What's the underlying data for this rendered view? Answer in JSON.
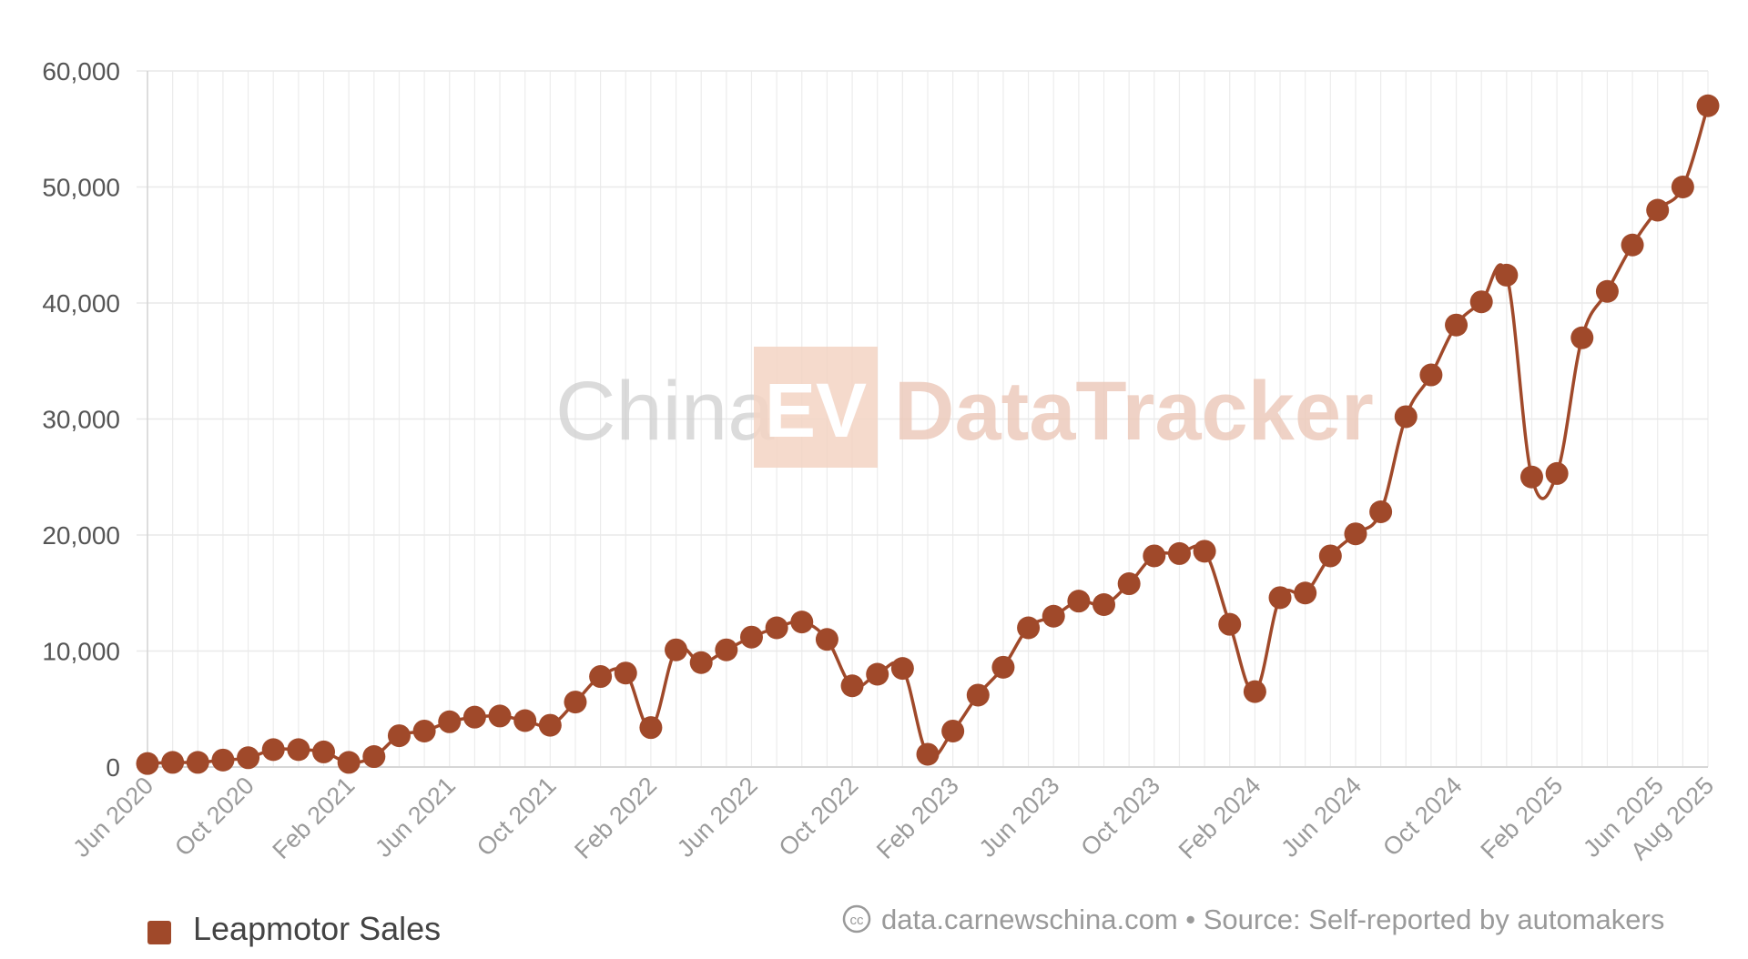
{
  "chart_data": {
    "type": "line",
    "title": "",
    "xlabel": "",
    "ylabel": "",
    "ylim": [
      0,
      60000
    ],
    "y_ticks": [
      "0",
      "10,000",
      "20,000",
      "30,000",
      "40,000",
      "50,000",
      "60,000"
    ],
    "x_tick_labels": [
      "Jun 2020",
      "Oct 2020",
      "Feb 2021",
      "Jun 2021",
      "Oct 2021",
      "Feb 2022",
      "Jun 2022",
      "Oct 2022",
      "Feb 2023",
      "Jun 2023",
      "Oct 2023",
      "Feb 2024",
      "Jun 2024",
      "Oct 2024",
      "Feb 2025",
      "Jun 2025",
      "Aug 2025"
    ],
    "x_start": "Jun 2020",
    "x_end": "Aug 2025",
    "grid": true,
    "legend_position": "bottom-left",
    "series": [
      {
        "name": "Leapmotor Sales",
        "color": "#a0492a",
        "values": [
          300,
          400,
          400,
          600,
          800,
          1500,
          1500,
          1300,
          400,
          900,
          2700,
          3100,
          3900,
          4300,
          4400,
          4000,
          3600,
          5600,
          7800,
          8100,
          3400,
          10100,
          9000,
          10100,
          11200,
          12000,
          12500,
          11000,
          7000,
          8000,
          8500,
          1100,
          3100,
          6200,
          8600,
          12000,
          13000,
          14300,
          14000,
          15800,
          18200,
          18400,
          18600,
          12300,
          6500,
          14600,
          15000,
          18200,
          20100,
          22000,
          30200,
          33800,
          38100,
          40100,
          42400,
          25000,
          25300,
          37000,
          41000,
          45000,
          48000,
          50000,
          57000
        ]
      }
    ]
  },
  "legend": {
    "label": "Leapmotor Sales"
  },
  "watermark": {
    "china": "China",
    "ev": "EV",
    "datatracker": "DataTracker"
  },
  "footer": {
    "cc_glyph": "cc",
    "source": "data.carnewschina.com • Source: Self-reported by automakers"
  }
}
